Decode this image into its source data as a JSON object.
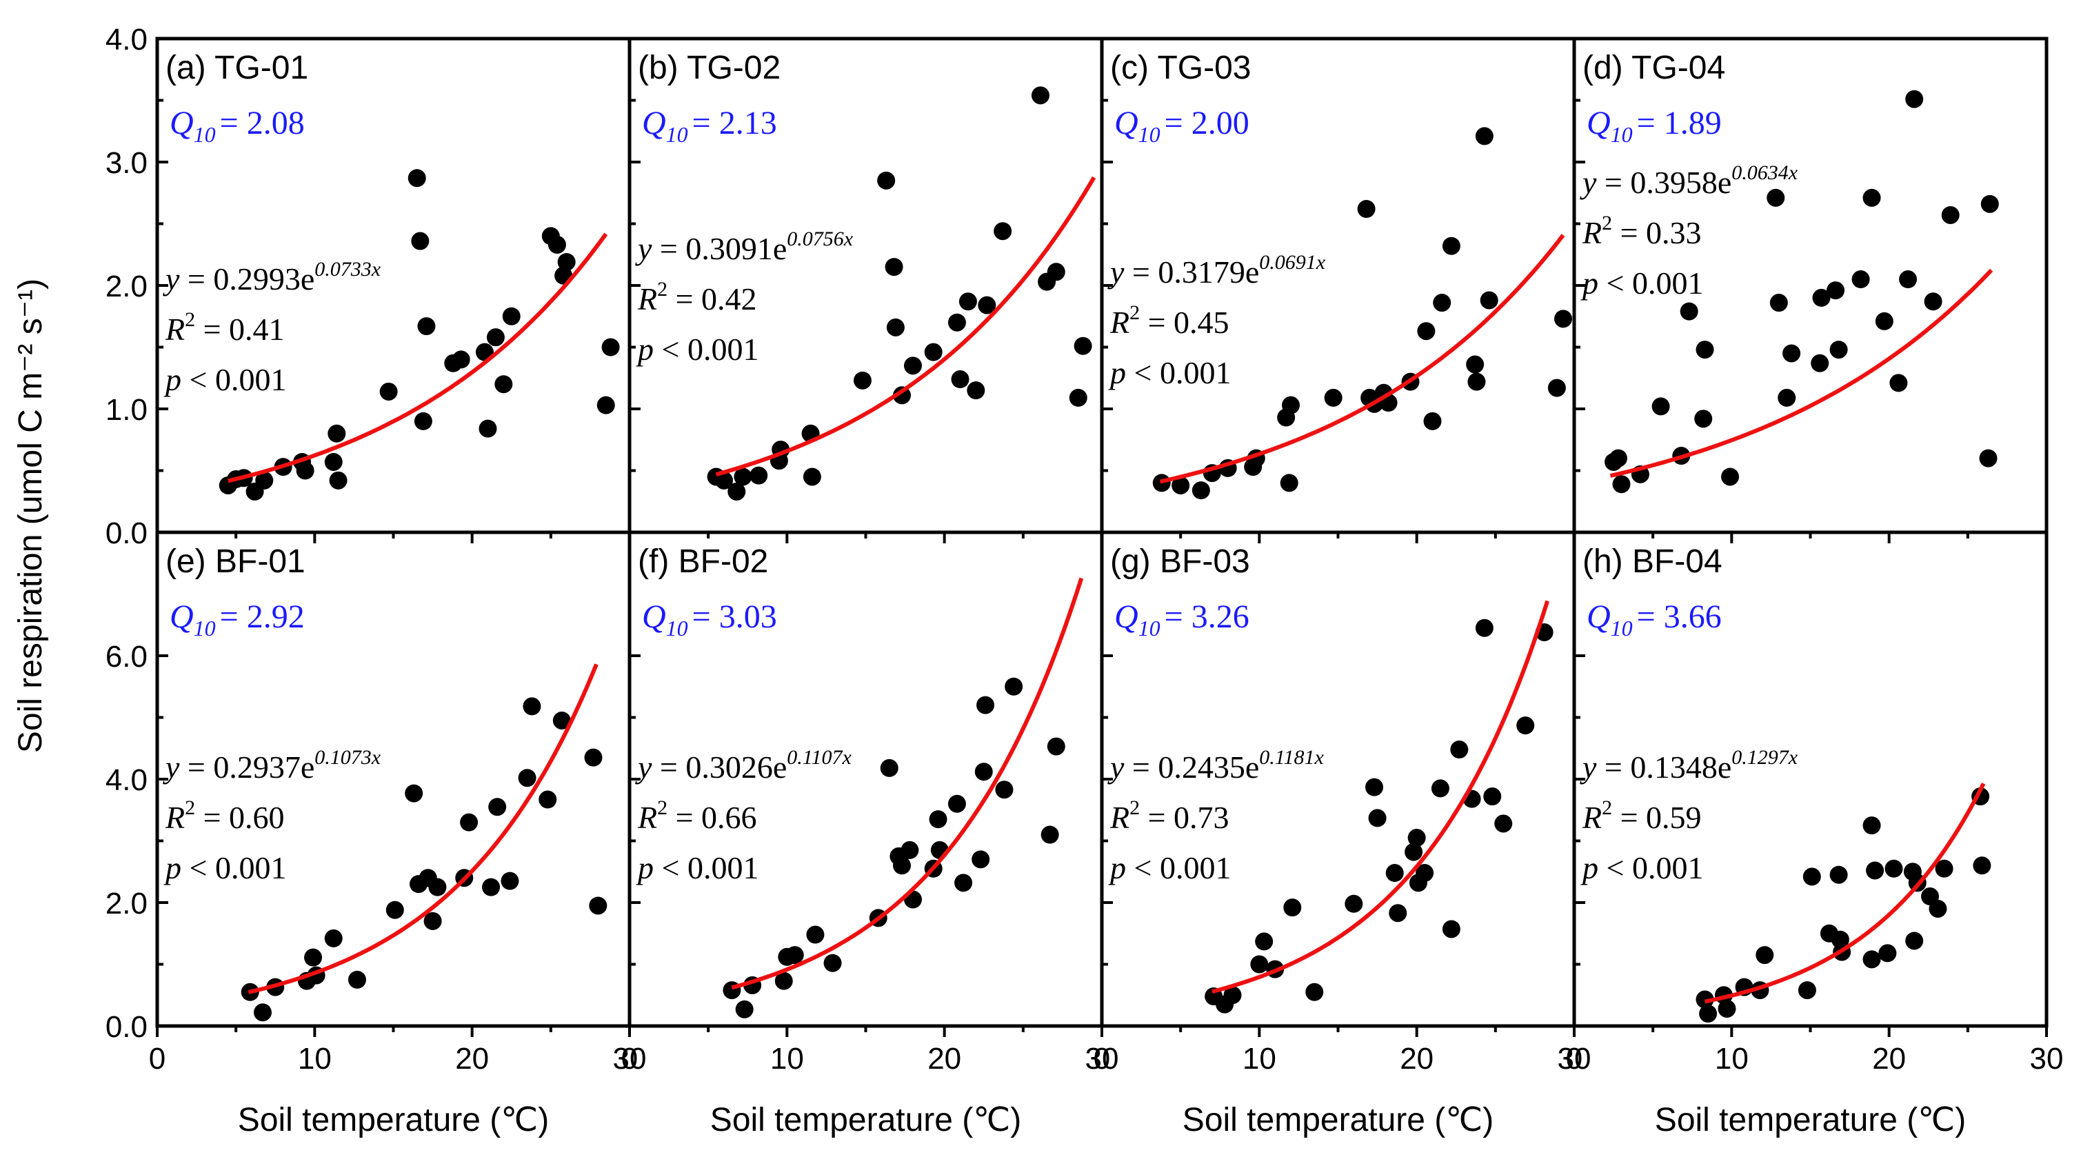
{
  "chart_data": {
    "type": "scatter",
    "xlabel": "Soil temperature (℃)",
    "ylabel": "Soil respiration (umol C m⁻² s⁻¹)",
    "xlim": [
      0,
      30
    ],
    "xticks": [
      "0",
      "10",
      "20",
      "30"
    ],
    "colors": {
      "points": "#000000",
      "fit": "#ee1111",
      "q10_text": "#1a1aff"
    },
    "rows": [
      {
        "ylim": [
          0,
          4
        ],
        "yticks": [
          "0.0",
          "1.0",
          "2.0",
          "3.0",
          "4.0"
        ]
      },
      {
        "ylim": [
          0,
          8
        ],
        "yticks": [
          "0.0",
          "2.0",
          "4.0",
          "6.0"
        ]
      }
    ],
    "panels": [
      {
        "id": "a",
        "title": "(a) TG-01",
        "q10_label": "Q",
        "q10_sub": "10",
        "q10_value": "= 2.08",
        "eq_prefix": "y",
        "eq_mid": " = 0.2993e",
        "eq_exp": "0.0733x",
        "r2_value": " = 0.41",
        "p_text": " < 0.001",
        "fit": {
          "a": 0.2993,
          "b": 0.0733,
          "xmin": 4.5,
          "xmax": 28.5
        },
        "points": [
          [
            4.5,
            0.38
          ],
          [
            5,
            0.43
          ],
          [
            5.5,
            0.44
          ],
          [
            6.2,
            0.33
          ],
          [
            6.8,
            0.42
          ],
          [
            8,
            0.53
          ],
          [
            9.2,
            0.57
          ],
          [
            9.4,
            0.5
          ],
          [
            11.2,
            0.57
          ],
          [
            11.4,
            0.8
          ],
          [
            11.5,
            0.42
          ],
          [
            14.7,
            1.14
          ],
          [
            16.5,
            2.87
          ],
          [
            16.7,
            2.36
          ],
          [
            16.9,
            0.9
          ],
          [
            17.1,
            1.67
          ],
          [
            18.8,
            1.37
          ],
          [
            19.3,
            1.4
          ],
          [
            20.8,
            1.46
          ],
          [
            21,
            0.84
          ],
          [
            21.5,
            1.58
          ],
          [
            22,
            1.2
          ],
          [
            22.5,
            1.75
          ],
          [
            25,
            2.4
          ],
          [
            25.4,
            2.33
          ],
          [
            25.8,
            2.08
          ],
          [
            26,
            2.19
          ],
          [
            28.5,
            1.03
          ],
          [
            28.8,
            1.5
          ]
        ]
      },
      {
        "id": "b",
        "title": "(b) TG-02",
        "q10_label": "Q",
        "q10_sub": "10",
        "q10_value": "= 2.13",
        "eq_prefix": "y",
        "eq_mid": " = 0.3091e",
        "eq_exp": "0.0756x",
        "r2_value": " = 0.42",
        "p_text": " < 0.001",
        "fit": {
          "a": 0.3091,
          "b": 0.0756,
          "xmin": 5.5,
          "xmax": 29.5
        },
        "points": [
          [
            5.5,
            0.45
          ],
          [
            6,
            0.42
          ],
          [
            6.8,
            0.33
          ],
          [
            7.2,
            0.45
          ],
          [
            8.2,
            0.46
          ],
          [
            9.5,
            0.58
          ],
          [
            9.6,
            0.67
          ],
          [
            11.5,
            0.8
          ],
          [
            11.6,
            0.45
          ],
          [
            14.8,
            1.23
          ],
          [
            16.3,
            2.85
          ],
          [
            16.8,
            2.15
          ],
          [
            16.9,
            1.66
          ],
          [
            17.3,
            1.11
          ],
          [
            18,
            1.35
          ],
          [
            19.3,
            1.46
          ],
          [
            20.8,
            1.7
          ],
          [
            21,
            1.24
          ],
          [
            21.5,
            1.87
          ],
          [
            22,
            1.15
          ],
          [
            22.7,
            1.84
          ],
          [
            23.7,
            2.44
          ],
          [
            26.1,
            3.54
          ],
          [
            26.5,
            2.03
          ],
          [
            27.1,
            2.11
          ],
          [
            28.5,
            1.09
          ],
          [
            28.8,
            1.51
          ]
        ]
      },
      {
        "id": "c",
        "title": "(c) TG-03",
        "q10_label": "Q",
        "q10_sub": "10",
        "q10_value": "= 2.00",
        "eq_prefix": "y",
        "eq_mid": " = 0.3179e",
        "eq_exp": "0.0691x",
        "r2_value": " = 0.45",
        "p_text": " < 0.001",
        "fit": {
          "a": 0.3179,
          "b": 0.0691,
          "xmin": 3.7,
          "xmax": 29.3
        },
        "points": [
          [
            3.8,
            0.4
          ],
          [
            5,
            0.38
          ],
          [
            6.3,
            0.34
          ],
          [
            7,
            0.48
          ],
          [
            8,
            0.52
          ],
          [
            9.6,
            0.53
          ],
          [
            9.8,
            0.6
          ],
          [
            11.7,
            0.93
          ],
          [
            11.9,
            0.4
          ],
          [
            12,
            1.03
          ],
          [
            14.7,
            1.09
          ],
          [
            16.8,
            2.62
          ],
          [
            17,
            1.09
          ],
          [
            17.3,
            1.04
          ],
          [
            17.9,
            1.13
          ],
          [
            18.2,
            1.05
          ],
          [
            19.6,
            1.22
          ],
          [
            20.6,
            1.63
          ],
          [
            21,
            0.9
          ],
          [
            21.6,
            1.86
          ],
          [
            22.2,
            2.32
          ],
          [
            23.7,
            1.36
          ],
          [
            23.8,
            1.22
          ],
          [
            24.3,
            3.21
          ],
          [
            24.6,
            1.88
          ],
          [
            28.9,
            1.17
          ],
          [
            29.3,
            1.73
          ]
        ]
      },
      {
        "id": "d",
        "title": "(d) TG-04",
        "q10_label": "Q",
        "q10_sub": "10",
        "q10_value": "= 1.89",
        "eq_prefix": "y",
        "eq_mid": " = 0.3958e",
        "eq_exp": "0.0634x",
        "r2_value": " = 0.33",
        "p_text": " < 0.001",
        "fit": {
          "a": 0.3958,
          "b": 0.0634,
          "xmin": 2.3,
          "xmax": 26.5
        },
        "points": [
          [
            2.5,
            0.57
          ],
          [
            2.8,
            0.6
          ],
          [
            3,
            0.39
          ],
          [
            4.2,
            0.47
          ],
          [
            5.5,
            1.02
          ],
          [
            6.8,
            0.62
          ],
          [
            7.3,
            1.79
          ],
          [
            8.3,
            1.48
          ],
          [
            8.2,
            0.92
          ],
          [
            9.9,
            0.45
          ],
          [
            12.8,
            2.71
          ],
          [
            13,
            1.86
          ],
          [
            13.5,
            1.09
          ],
          [
            13.8,
            1.45
          ],
          [
            15.6,
            1.37
          ],
          [
            15.7,
            1.9
          ],
          [
            16.6,
            1.96
          ],
          [
            16.8,
            1.48
          ],
          [
            18.2,
            2.05
          ],
          [
            18.9,
            2.71
          ],
          [
            19.7,
            1.71
          ],
          [
            20.6,
            1.21
          ],
          [
            21.2,
            2.05
          ],
          [
            21.6,
            3.51
          ],
          [
            22.8,
            1.87
          ],
          [
            23.9,
            2.57
          ],
          [
            26.4,
            2.66
          ],
          [
            26.3,
            0.6
          ]
        ]
      },
      {
        "id": "e",
        "title": "(e) BF-01",
        "q10_label": "Q",
        "q10_sub": "10",
        "q10_value": "= 2.92",
        "eq_prefix": "y",
        "eq_mid": " = 0.2937e",
        "eq_exp": "0.1073x",
        "r2_value": " = 0.60",
        "p_text": " < 0.001",
        "fit": {
          "a": 0.2937,
          "b": 0.1073,
          "xmin": 5.8,
          "xmax": 27.9
        },
        "points": [
          [
            5.9,
            0.55
          ],
          [
            6.7,
            0.22
          ],
          [
            7.5,
            0.63
          ],
          [
            9.5,
            0.73
          ],
          [
            9.9,
            1.11
          ],
          [
            10.1,
            0.82
          ],
          [
            11.2,
            1.42
          ],
          [
            12.7,
            0.75
          ],
          [
            15.1,
            1.88
          ],
          [
            16.3,
            3.77
          ],
          [
            16.6,
            2.3
          ],
          [
            17.2,
            2.4
          ],
          [
            17.5,
            1.7
          ],
          [
            17.8,
            2.25
          ],
          [
            19.5,
            2.4
          ],
          [
            19.8,
            3.3
          ],
          [
            21.2,
            2.25
          ],
          [
            21.6,
            3.55
          ],
          [
            22.4,
            2.35
          ],
          [
            23.5,
            4.02
          ],
          [
            23.8,
            5.18
          ],
          [
            24.8,
            3.67
          ],
          [
            25.7,
            4.95
          ],
          [
            27.7,
            4.35
          ],
          [
            28,
            1.95
          ]
        ]
      },
      {
        "id": "f",
        "title": "(f) BF-02",
        "q10_label": "Q",
        "q10_sub": "10",
        "q10_value": "= 3.03",
        "eq_prefix": "y",
        "eq_mid": " = 0.3026e",
        "eq_exp": "0.1107x",
        "r2_value": " = 0.66",
        "p_text": " < 0.001",
        "fit": {
          "a": 0.3026,
          "b": 0.1107,
          "xmin": 6.5,
          "xmax": 28.7
        },
        "points": [
          [
            6.5,
            0.58
          ],
          [
            7.3,
            0.27
          ],
          [
            7.8,
            0.66
          ],
          [
            9.8,
            0.73
          ],
          [
            10,
            1.12
          ],
          [
            10.5,
            1.15
          ],
          [
            11.8,
            1.48
          ],
          [
            12.9,
            1.02
          ],
          [
            15.8,
            1.75
          ],
          [
            16.5,
            4.18
          ],
          [
            17.1,
            2.75
          ],
          [
            17.3,
            2.6
          ],
          [
            17.8,
            2.85
          ],
          [
            18,
            2.05
          ],
          [
            19.3,
            2.55
          ],
          [
            19.6,
            3.35
          ],
          [
            19.7,
            2.85
          ],
          [
            20.8,
            3.6
          ],
          [
            21.2,
            2.32
          ],
          [
            22.3,
            2.7
          ],
          [
            22.6,
            5.2
          ],
          [
            22.5,
            4.12
          ],
          [
            23.8,
            3.83
          ],
          [
            24.4,
            5.5
          ],
          [
            26.7,
            3.1
          ],
          [
            27.1,
            4.53
          ]
        ]
      },
      {
        "id": "g",
        "title": "(g) BF-03",
        "q10_label": "Q",
        "q10_sub": "10",
        "q10_value": "= 3.26",
        "eq_prefix": "y",
        "eq_mid": " = 0.2435e",
        "eq_exp": "0.1181x",
        "r2_value": " = 0.73",
        "p_text": " < 0.001",
        "fit": {
          "a": 0.2435,
          "b": 0.1181,
          "xmin": 7.0,
          "xmax": 28.3
        },
        "points": [
          [
            7.1,
            0.48
          ],
          [
            7.8,
            0.35
          ],
          [
            8.3,
            0.5
          ],
          [
            10,
            1
          ],
          [
            10.3,
            1.37
          ],
          [
            11,
            0.92
          ],
          [
            12.1,
            1.92
          ],
          [
            13.5,
            0.55
          ],
          [
            16,
            1.98
          ],
          [
            17.3,
            3.87
          ],
          [
            17.5,
            3.37
          ],
          [
            18.6,
            2.48
          ],
          [
            18.8,
            1.83
          ],
          [
            19.8,
            2.82
          ],
          [
            20,
            3.05
          ],
          [
            20.1,
            2.32
          ],
          [
            20.5,
            2.48
          ],
          [
            21.5,
            3.85
          ],
          [
            22.2,
            1.57
          ],
          [
            22.7,
            4.48
          ],
          [
            23.5,
            3.68
          ],
          [
            24.3,
            6.45
          ],
          [
            24.8,
            3.72
          ],
          [
            25.5,
            3.28
          ],
          [
            26.9,
            4.87
          ],
          [
            28.1,
            6.38
          ]
        ]
      },
      {
        "id": "h",
        "title": "(h) BF-04",
        "q10_label": "Q",
        "q10_sub": "10",
        "q10_value": "= 3.66",
        "eq_prefix": "y",
        "eq_mid": " = 0.1348e",
        "eq_exp": "0.1297x",
        "r2_value": " = 0.59",
        "p_text": " < 0.001",
        "fit": {
          "a": 0.1348,
          "b": 0.1297,
          "xmin": 8.3,
          "xmax": 26.0
        },
        "points": [
          [
            8.3,
            0.43
          ],
          [
            8.5,
            0.2
          ],
          [
            9.5,
            0.5
          ],
          [
            9.7,
            0.28
          ],
          [
            10.8,
            0.63
          ],
          [
            11.8,
            0.58
          ],
          [
            12.1,
            1.15
          ],
          [
            14.8,
            0.58
          ],
          [
            15.1,
            2.42
          ],
          [
            16.2,
            1.5
          ],
          [
            16.8,
            2.45
          ],
          [
            16.9,
            1.4
          ],
          [
            17,
            1.2
          ],
          [
            18.9,
            3.25
          ],
          [
            18.9,
            1.08
          ],
          [
            19.1,
            2.52
          ],
          [
            19.9,
            1.18
          ],
          [
            20.3,
            2.55
          ],
          [
            21.5,
            2.5
          ],
          [
            21.6,
            1.38
          ],
          [
            21.8,
            2.32
          ],
          [
            22.6,
            2.1
          ],
          [
            23.1,
            1.9
          ],
          [
            23.5,
            2.55
          ],
          [
            25.8,
            3.72
          ],
          [
            25.9,
            2.6
          ]
        ]
      }
    ]
  }
}
